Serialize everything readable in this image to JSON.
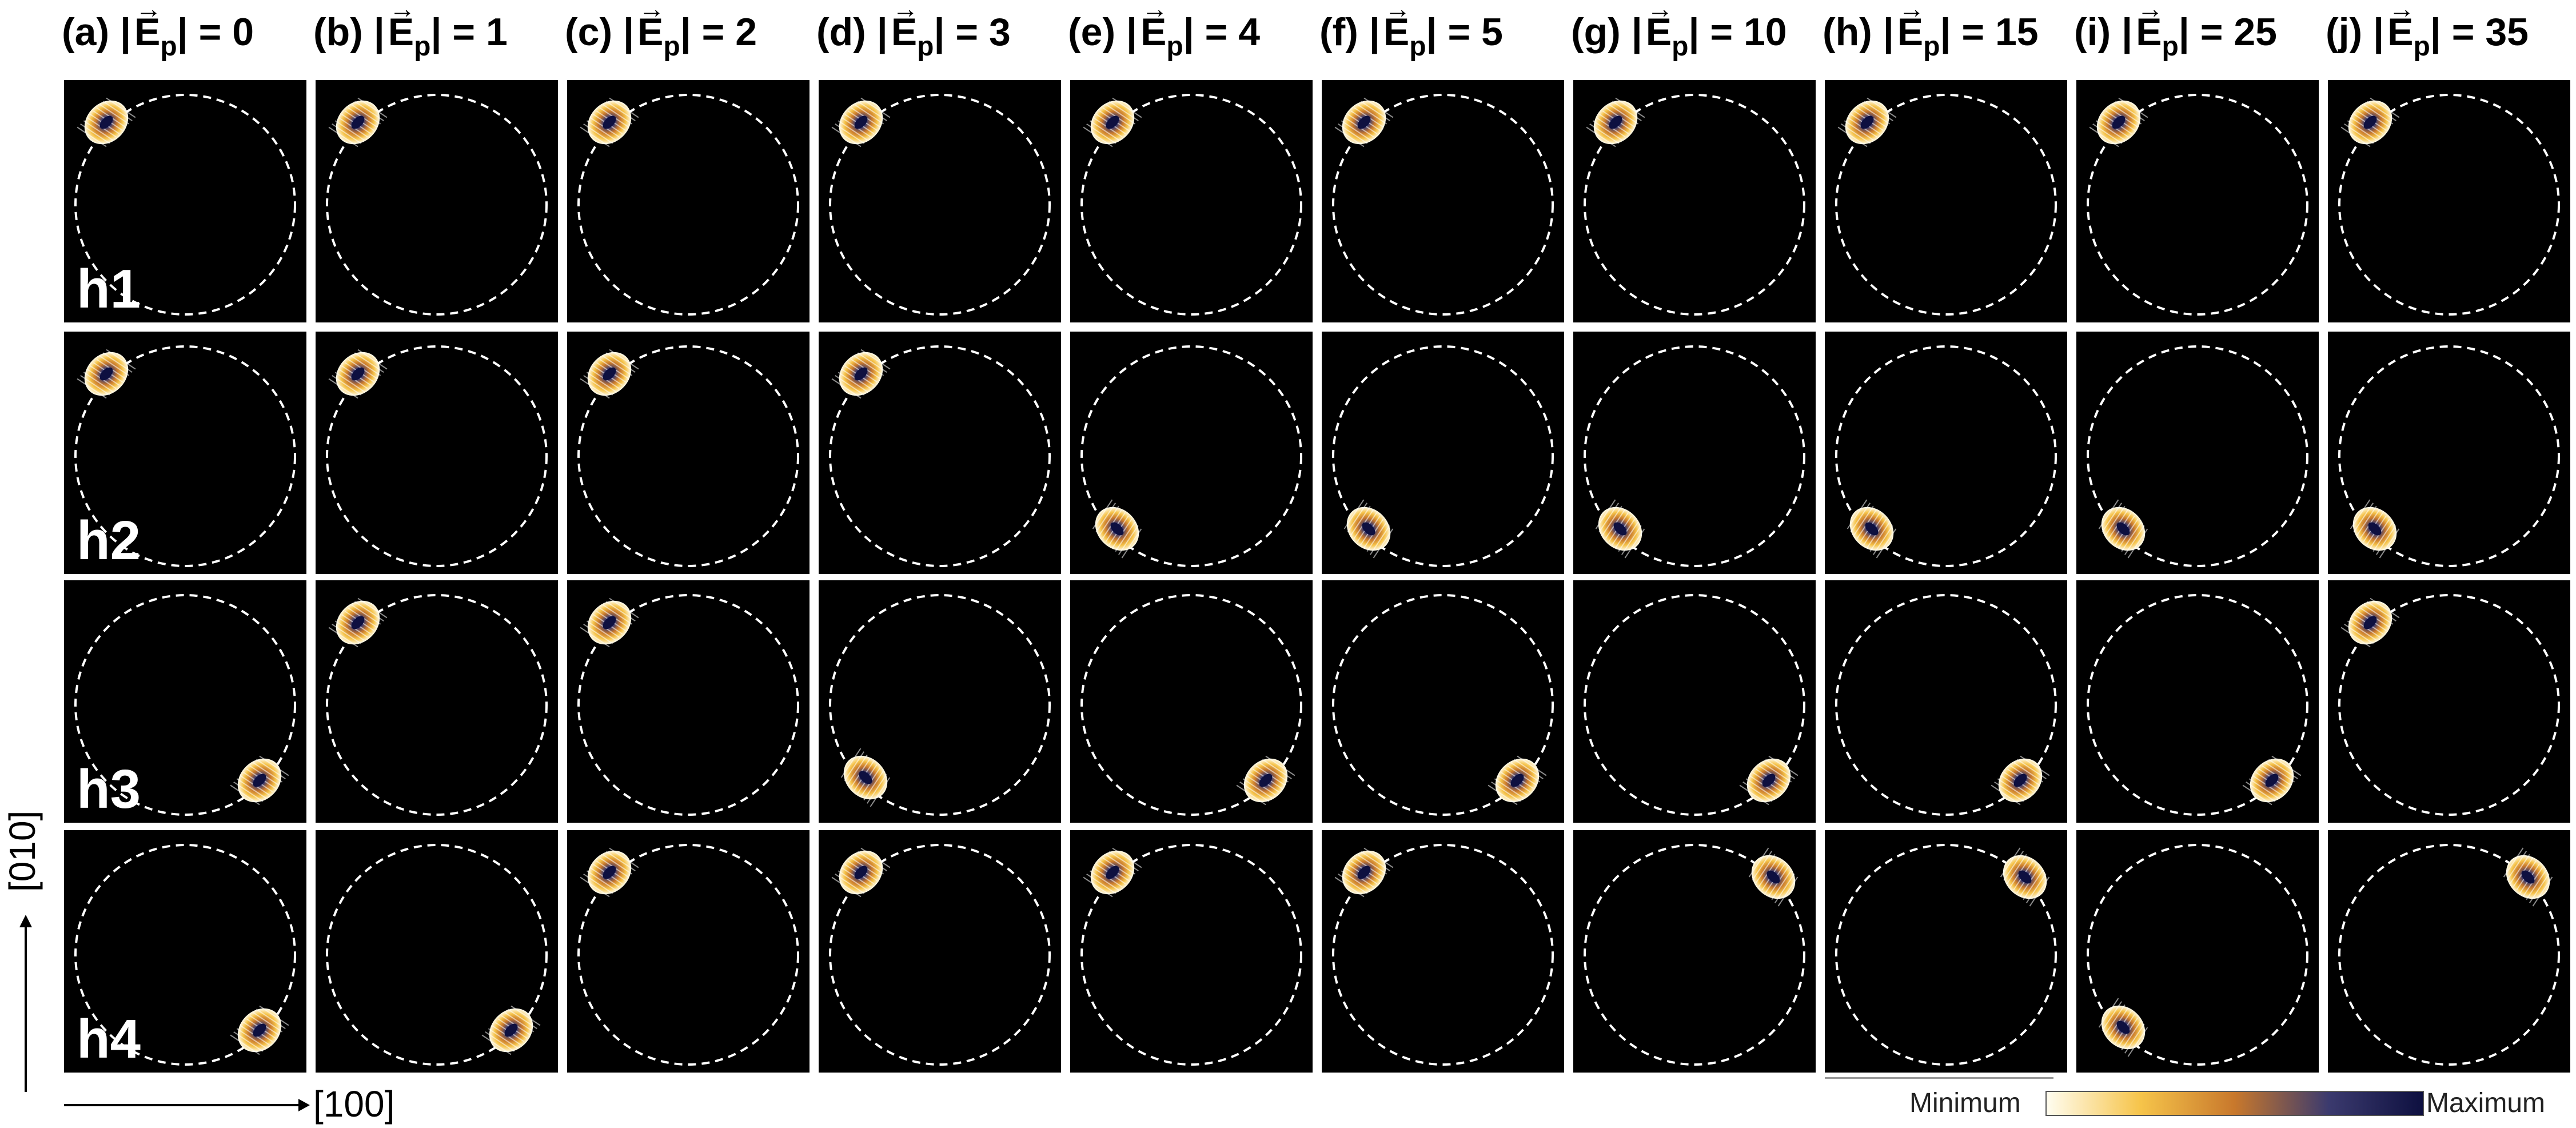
{
  "columns": [
    {
      "letter": "(a)",
      "value": "0"
    },
    {
      "letter": "(b)",
      "value": "1"
    },
    {
      "letter": "(c)",
      "value": "2"
    },
    {
      "letter": "(d)",
      "value": "3"
    },
    {
      "letter": "(e)",
      "value": "4"
    },
    {
      "letter": "(f)",
      "value": "5"
    },
    {
      "letter": "(g)",
      "value": "10"
    },
    {
      "letter": "(h)",
      "value": "15"
    },
    {
      "letter": "(i)",
      "value": "25"
    },
    {
      "letter": "(j)",
      "value": "35"
    }
  ],
  "field_symbol": "E",
  "field_subscript": "p",
  "rows": [
    "h1",
    "h2",
    "h3",
    "h4"
  ],
  "spot_positions": [
    [
      "upper-left",
      "upper-left",
      "upper-left",
      "upper-left",
      "upper-left",
      "upper-left",
      "upper-left",
      "upper-left",
      "upper-left",
      "upper-left"
    ],
    [
      "upper-left",
      "upper-left",
      "upper-left",
      "upper-left",
      "lower-left",
      "lower-left",
      "lower-left",
      "lower-left",
      "lower-left",
      "lower-left"
    ],
    [
      "lower-right",
      "upper-left",
      "upper-left",
      "lower-left",
      "lower-right",
      "lower-right",
      "lower-right",
      "lower-right",
      "lower-right",
      "upper-left"
    ],
    [
      "lower-right",
      "lower-right",
      "upper-left",
      "upper-left",
      "upper-left",
      "upper-left",
      "upper-right",
      "upper-right",
      "lower-left",
      "upper-right"
    ]
  ],
  "axes": {
    "x_label": "[100]",
    "y_label": "[010]"
  },
  "colorbar": {
    "min_label": "Minimum",
    "max_label": "Maximum",
    "colors": [
      "#fffdf0",
      "#f6c44a",
      "#c8782c",
      "#3b3a6e",
      "#0e1040"
    ]
  },
  "colors": {
    "panel_bg": "#000000",
    "circle": "#ffffff"
  }
}
